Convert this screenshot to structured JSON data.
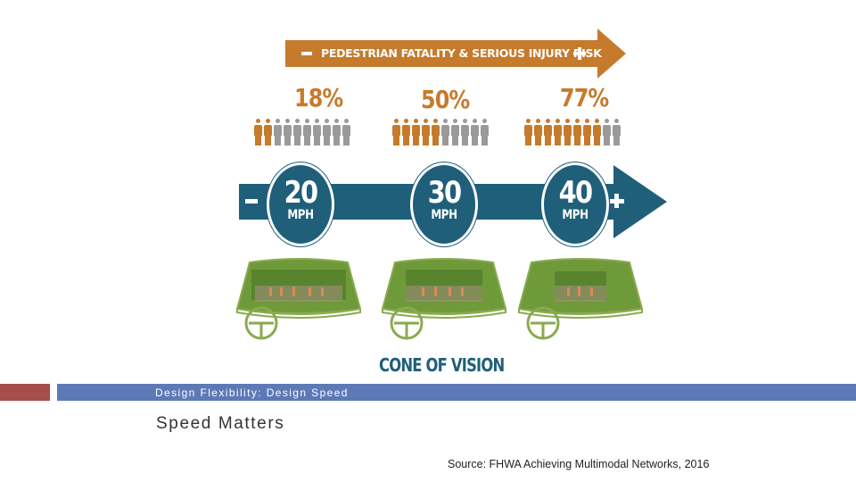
{
  "risk_arrow": {
    "label": "PEDESTRIAN FATALITY & SERIOUS INJURY RISK",
    "minus_symbol": "−",
    "plus_symbol": "+",
    "color": "#c67a2c"
  },
  "risk_groups": [
    {
      "percent": "18%",
      "affected": 2,
      "total": 10
    },
    {
      "percent": "50%",
      "affected": 5,
      "total": 10
    },
    {
      "percent": "77%",
      "affected": 8,
      "total": 10
    }
  ],
  "speed_arrow": {
    "color": "#1f5f7a",
    "speeds": [
      {
        "value": "20",
        "unit": "MPH"
      },
      {
        "value": "30",
        "unit": "MPH"
      },
      {
        "value": "40",
        "unit": "MPH"
      }
    ]
  },
  "vision_panels": [
    {
      "name": "wide-view"
    },
    {
      "name": "medium-view"
    },
    {
      "name": "narrow-view"
    }
  ],
  "cone_of_vision_label": "CONE OF VISION",
  "section_title": "Design Flexibility: Design Speed",
  "slide_title": "Speed Matters",
  "source": "Source: FHWA Achieving Multimodal Networks, 2016",
  "colors": {
    "accent_red": "#a54e4a",
    "accent_blue": "#5d79b6",
    "windshield_green": "#6f9a3a"
  }
}
